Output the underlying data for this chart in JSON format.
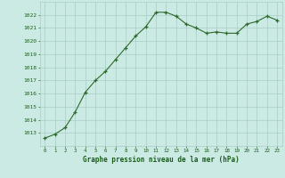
{
  "x": [
    0,
    1,
    2,
    3,
    4,
    5,
    6,
    7,
    8,
    9,
    10,
    11,
    12,
    13,
    14,
    15,
    16,
    17,
    18,
    19,
    20,
    21,
    22,
    23
  ],
  "y": [
    1012.6,
    1012.9,
    1013.4,
    1014.6,
    1016.1,
    1017.0,
    1017.7,
    1018.6,
    1019.5,
    1020.4,
    1021.1,
    1022.2,
    1022.2,
    1021.9,
    1021.3,
    1021.0,
    1020.6,
    1020.7,
    1020.6,
    1020.6,
    1021.3,
    1021.5,
    1021.9,
    1021.6
  ],
  "line_color": "#2d6a2d",
  "marker_color": "#2d6a2d",
  "bg_color": "#cceae4",
  "grid_color": "#a8ccc8",
  "xlabel": "Graphe pression niveau de la mer (hPa)",
  "xlabel_color": "#1a5c1a",
  "tick_color": "#1a5c1a",
  "ylim_min": 1012,
  "ylim_max": 1023,
  "ytick_step": 1,
  "xtick_labels": [
    "0",
    "1",
    "2",
    "3",
    "4",
    "5",
    "6",
    "7",
    "8",
    "9",
    "10",
    "11",
    "12",
    "13",
    "14",
    "15",
    "16",
    "17",
    "18",
    "19",
    "20",
    "21",
    "22",
    "23"
  ]
}
